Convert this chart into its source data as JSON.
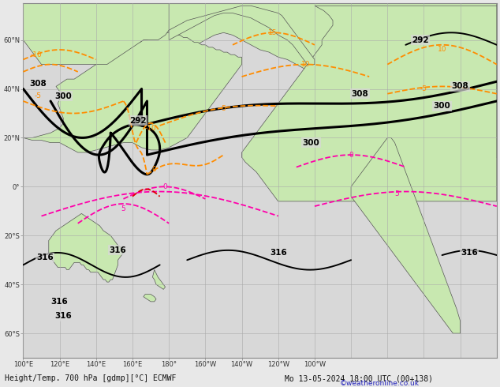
{
  "title_left": "Height/Temp. 700 hPa [gdmp][°C] ECMWF",
  "title_right": "Mo 13-05-2024 18:00 UTC (00+138)",
  "copyright": "©weatheronline.co.uk",
  "fig_width": 6.34,
  "fig_height": 4.9,
  "dpi": 100,
  "bg_color": "#e8e8e8",
  "land_color": "#c8e8b0",
  "sea_color": "#d8d8d8",
  "grid_color": "#aaaaaa",
  "coast_color": "#555555",
  "height_color": "#000000",
  "temp_neg_color": "#ff8c00",
  "temp_pos_color": "#ff00aa",
  "temp_red_color": "#dd0000",
  "title_fontsize": 7.0,
  "label_fontsize": 7.5,
  "tick_fontsize": 6.0,
  "lon_min": 100,
  "lon_max": 360,
  "lat_min": -70,
  "lat_max": 75,
  "grid_lons": [
    100,
    120,
    140,
    160,
    180,
    200,
    220,
    240,
    260,
    280,
    300,
    320,
    340,
    360
  ],
  "grid_lats": [
    -60,
    -40,
    -20,
    0,
    20,
    40,
    60
  ],
  "tick_lons_labels": [
    "100°E",
    "120°E",
    "140°E",
    "160°E",
    "180°",
    "160°W",
    "140°W",
    "120°W",
    "100°W"
  ],
  "tick_lons_vals": [
    100,
    120,
    140,
    160,
    180,
    200,
    220,
    240,
    260
  ],
  "tick_lats_labels": [
    "60°S",
    "40°S",
    "20°S",
    "0°",
    "20°N",
    "40°N",
    "60°N"
  ],
  "tick_lats_vals": [
    -60,
    -40,
    -20,
    0,
    20,
    40,
    60
  ]
}
